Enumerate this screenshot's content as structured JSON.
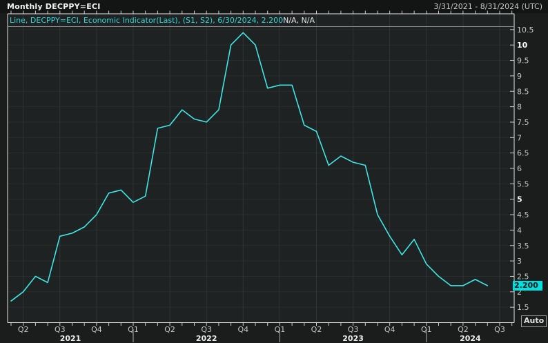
{
  "header": {
    "title": "Monthly DECPPY=ECI",
    "date_range": "3/31/2021 - 8/31/2024 (UTC)"
  },
  "legend": {
    "series_text": "Line, DECPPY=ECI, Economic Indicator(Last), (S1, S2), 6/30/2024, 2.200",
    "suffix_text": "N/A, N/A"
  },
  "y_axis": {
    "label_min": 1.5,
    "label_max": 10.5,
    "step": 0.5,
    "bold_values": [
      5,
      10
    ],
    "price_label": "2.200",
    "price_value": 2.2
  },
  "x_axis": {
    "quarter_labels": [
      "Q2",
      "Q3",
      "Q4",
      "Q1",
      "Q2",
      "Q3",
      "Q4",
      "Q1",
      "Q2",
      "Q3",
      "Q4",
      "Q1",
      "Q2",
      "Q3"
    ],
    "year_labels": [
      "2021",
      "2022",
      "2023",
      "2024"
    ]
  },
  "controls": {
    "auto_label": "Auto"
  },
  "colors": {
    "line": "#3fe6e6",
    "price_bg": "#00e0e0",
    "grid_h": "#2a2d2d",
    "grid_v": "#303434",
    "frame": "#e4e4e4",
    "tick": "#cfcfcf",
    "tick_label": "#c8c8c8",
    "bold_label": "#ffffff",
    "year_label": "#ececec",
    "plot_bg": "#1f2222",
    "legend_divider": "#8b8b8b"
  },
  "chart_data": {
    "type": "line",
    "series_name": "DECPPY=ECI, Economic Indicator(Last)",
    "interval": "Monthly",
    "x_range_visible": [
      "2021-03",
      "2024-08"
    ],
    "x": [
      "2021-03",
      "2021-04",
      "2021-05",
      "2021-06",
      "2021-07",
      "2021-08",
      "2021-09",
      "2021-10",
      "2021-11",
      "2021-12",
      "2022-01",
      "2022-02",
      "2022-03",
      "2022-04",
      "2022-05",
      "2022-06",
      "2022-07",
      "2022-08",
      "2022-09",
      "2022-10",
      "2022-11",
      "2022-12",
      "2023-01",
      "2023-02",
      "2023-03",
      "2023-04",
      "2023-05",
      "2023-06",
      "2023-07",
      "2023-08",
      "2023-09",
      "2023-10",
      "2023-11",
      "2023-12",
      "2024-01",
      "2024-02",
      "2024-03",
      "2024-04",
      "2024-05",
      "2024-06"
    ],
    "values": [
      1.7,
      2.0,
      2.5,
      2.3,
      3.8,
      3.9,
      4.1,
      4.5,
      5.2,
      5.3,
      4.9,
      5.1,
      7.3,
      7.4,
      7.9,
      7.6,
      7.5,
      7.9,
      10.0,
      10.4,
      10.0,
      8.6,
      8.7,
      8.7,
      7.4,
      7.2,
      6.1,
      6.4,
      6.2,
      6.1,
      4.5,
      3.8,
      3.2,
      3.7,
      2.9,
      2.5,
      2.2,
      2.2,
      2.4,
      2.2
    ],
    "last_point": {
      "date": "6/30/2024",
      "value": 2.2
    },
    "ylim": [
      1.0,
      10.6
    ],
    "grid": true,
    "legend_position": "top-left"
  }
}
